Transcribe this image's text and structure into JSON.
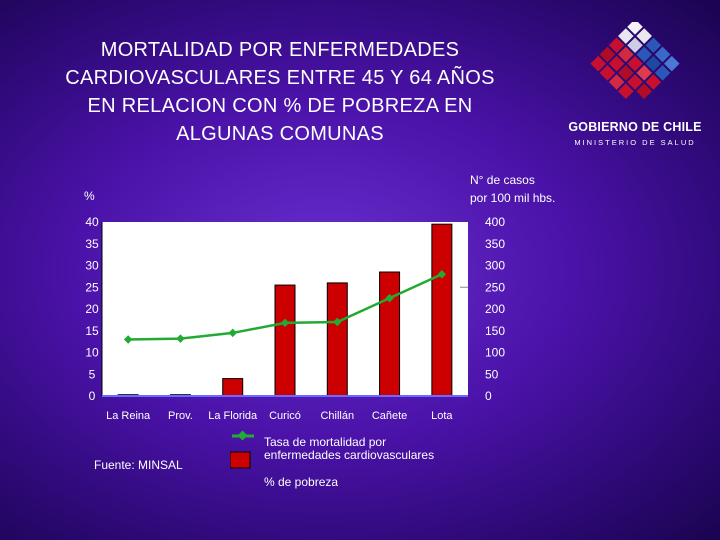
{
  "title_lines": [
    "MORTALIDAD POR ENFERMEDADES",
    "CARDIOVASCULARES ENTRE 45 Y 64 AÑOS",
    "EN RELACION CON % DE POBREZA EN",
    "ALGUNAS COMUNAS"
  ],
  "logo": {
    "name": "GOBIERNO DE CHILE",
    "subtitle": "MINISTERIO DE SALUD",
    "colors": [
      "#2b57b8",
      "#c8102e",
      "#ffffff"
    ]
  },
  "source": "Fuente: MINSAL",
  "legend": {
    "line_label_1": "Tasa de mortalidad por",
    "line_label_2": "enfermedades cardiovasculares",
    "bar_label": "% de pobreza"
  },
  "colors": {
    "bar": "#cc0000",
    "line": "#22aa33",
    "axis": "#ffffff"
  },
  "chart_data": {
    "type": "bar",
    "categories": [
      "La Reina",
      "Prov.",
      "La Florida",
      "Curicó",
      "Chillán",
      "Cañete",
      "Lota"
    ],
    "ylabel": "%",
    "y2label_1": "N° de casos",
    "y2label_2": "por 100 mil hbs.",
    "ylim": [
      0,
      40
    ],
    "y2lim": [
      0,
      400
    ],
    "yticks": [
      "0",
      "5",
      "10",
      "15",
      "20",
      "25",
      "30",
      "35",
      "40"
    ],
    "y2ticks": [
      "0",
      "50",
      "100",
      "150",
      "200",
      "250",
      "300",
      "350",
      "400"
    ],
    "series": [
      {
        "type": "bar",
        "axis": "left",
        "values": [
          0.3,
          0.3,
          4,
          25.5,
          26,
          28.5,
          39.5
        ]
      },
      {
        "type": "line",
        "axis": "right",
        "values": [
          130,
          132,
          145,
          168,
          170,
          225,
          280
        ]
      }
    ]
  }
}
